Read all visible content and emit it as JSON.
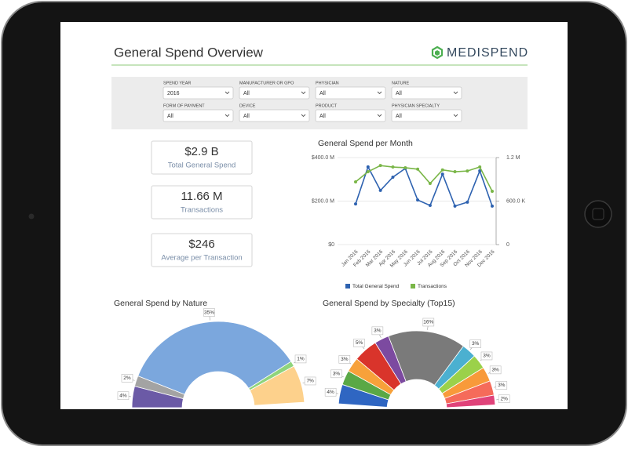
{
  "header": {
    "title": "General Spend Overview",
    "logo": "MEDISPEND"
  },
  "filters": [
    {
      "label": "SPEND YEAR",
      "value": "2016"
    },
    {
      "label": "MANUFACTURER OR GPO",
      "value": "All"
    },
    {
      "label": "PHYSICIAN",
      "value": "All"
    },
    {
      "label": "NATURE",
      "value": "All"
    },
    {
      "label": "FORM OF PAYMENT",
      "value": "All"
    },
    {
      "label": "DEVICE",
      "value": "All"
    },
    {
      "label": "PRODUCT",
      "value": "All"
    },
    {
      "label": "PHYSICIAN SPECIALTY",
      "value": "All"
    }
  ],
  "kpis": [
    {
      "value": "$2.9 B",
      "label": "Total General Spend"
    },
    {
      "value": "11.66 M",
      "label": "Transactions"
    },
    {
      "value": "$246",
      "label": "Average per Transaction"
    }
  ],
  "chart_data": [
    {
      "type": "line",
      "title": "General Spend per Month",
      "categories": [
        "Jan 2016",
        "Feb 2016",
        "Mar 2016",
        "Apr 2016",
        "May 2016",
        "Jun 2016",
        "Jul 2016",
        "Aug 2016",
        "Sep 2016",
        "Oct 2016",
        "Nov 2016",
        "Dec 2016"
      ],
      "series": [
        {
          "name": "Total General Spend",
          "color": "#2e62b0",
          "values": [
            187000000,
            357000000,
            249000000,
            310000000,
            350000000,
            205000000,
            180000000,
            324000000,
            177000000,
            195000000,
            339000000,
            177000000
          ]
        },
        {
          "name": "Transactions",
          "color": "#7ab648",
          "axis": "y2",
          "values": [
            865000,
            1005000,
            1090000,
            1070000,
            1060000,
            1040000,
            843000,
            1030000,
            1005000,
            1015000,
            1070000,
            735000
          ]
        }
      ],
      "ylim": [
        0,
        400000000
      ],
      "yticks": [
        {
          "value": 0,
          "label": "$0"
        },
        {
          "value": 200000000,
          "label": "$200.0 M"
        },
        {
          "value": 400000000,
          "label": "$400.0 M"
        }
      ],
      "y2lim": [
        0,
        1200000
      ],
      "y2ticks": [
        0,
        {
          "value": 600000,
          "label": "600.0 K"
        },
        {
          "value": 1200000,
          "label": "1.2 M"
        }
      ],
      "grid": true,
      "legend": "bottom"
    },
    {
      "type": "pie",
      "title": "General Spend by Nature",
      "values": [
        4,
        2,
        35,
        1,
        7
      ],
      "value_labels": [
        "4%",
        "2%",
        "35%",
        "1%",
        "7%"
      ],
      "colors": [
        "#6b5aa6",
        "#a3a3a3",
        "#7ba7dd",
        "#8fd47c",
        "#fdd18c"
      ]
    },
    {
      "type": "pie",
      "title": "General Spend by Specialty (Top15)",
      "values": [
        4,
        3,
        3,
        5,
        3,
        16,
        3,
        3,
        3,
        3,
        2
      ],
      "value_labels": [
        "4%",
        "3%",
        "3%",
        "5%",
        "3%",
        "16%",
        "3%",
        "3%",
        "3%",
        "3%",
        "2%"
      ],
      "colors": [
        "#2f66c2",
        "#5aa846",
        "#f7a13a",
        "#d9342b",
        "#7c4aa0",
        "#7a7a7a",
        "#4bb0d0",
        "#9bd14a",
        "#f89a3a",
        "#f56b5a",
        "#e0437a"
      ]
    }
  ]
}
